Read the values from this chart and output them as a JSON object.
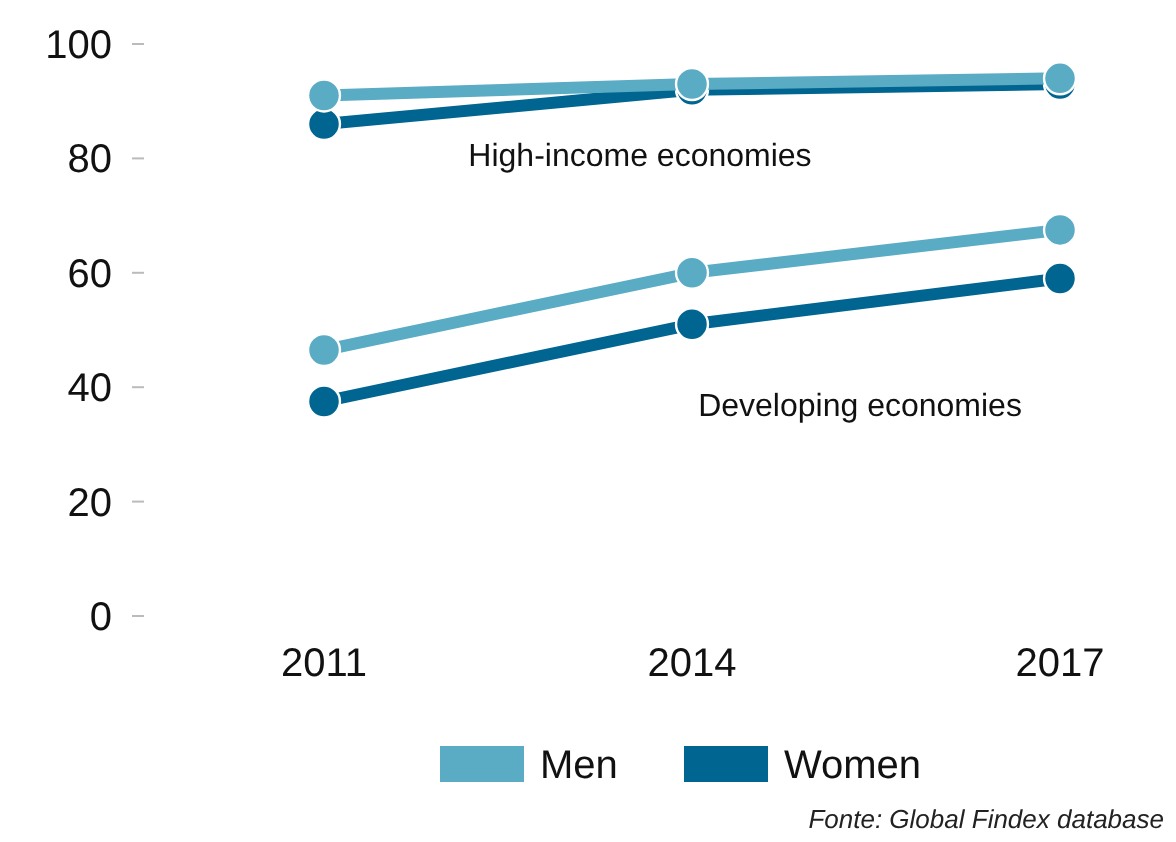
{
  "chart_data": {
    "type": "line",
    "categories": [
      "2011",
      "2014",
      "2017"
    ],
    "series": [
      {
        "name": "Men",
        "color": "#5aabc4",
        "values": [
          91,
          93,
          94
        ]
      },
      {
        "name": "Women",
        "color": "#006590",
        "values": [
          86,
          92,
          93
        ]
      },
      {
        "color": "#5aabc4",
        "values": [
          46.5,
          60,
          67.5
        ]
      },
      {
        "color": "#006590",
        "values": [
          37.5,
          51,
          59
        ]
      }
    ],
    "ylim": [
      0,
      100
    ],
    "yticks": [
      0,
      20,
      40,
      60,
      80,
      100
    ],
    "grid": false,
    "legend": "bottom",
    "marker": "circle",
    "line_style": "solid",
    "annotations": [
      "High-income economies",
      "Developing economies",
      "Fonte: Global Findex database"
    ]
  }
}
